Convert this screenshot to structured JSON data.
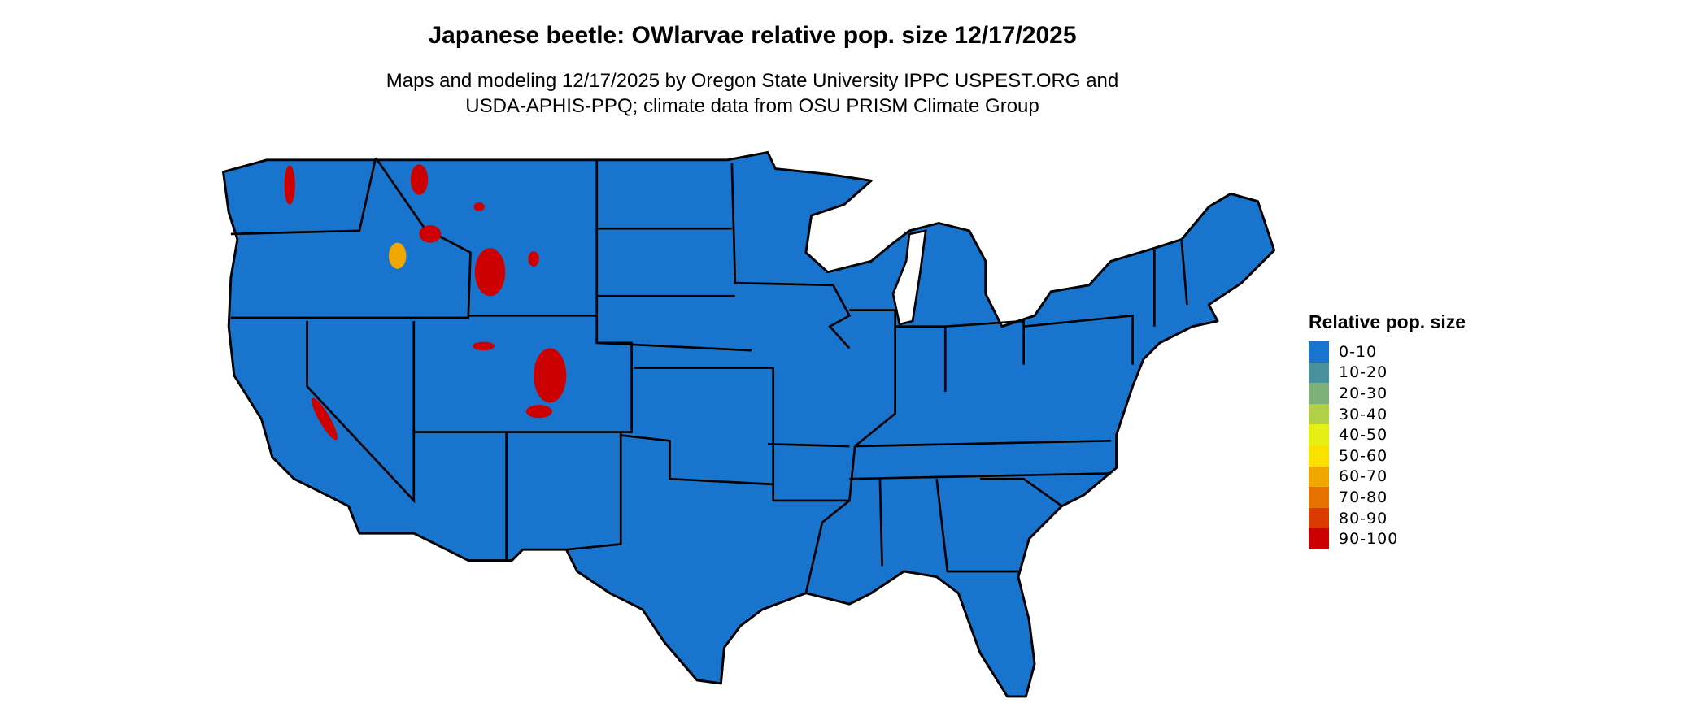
{
  "chart_data": {
    "type": "choropleth-map",
    "title": "Japanese beetle: OWlarvae relative pop. size 12/17/2025",
    "subtitle_lines": [
      "Maps and modeling 12/17/2025 by Oregon State University IPPC USPEST.ORG and",
      "USDA-APHIS-PPQ; climate data from OSU PRISM Climate Group"
    ],
    "region": "Contiguous United States",
    "dominant_class": "0-10",
    "high_value_areas": [
      "Idaho/Montana/Wyoming mountains",
      "Colorado Rockies",
      "Utah mountains",
      "Sierra Nevada (California)",
      "Washington Cascades"
    ],
    "legend": {
      "title": "Relative pop. size",
      "placement": "right",
      "items": [
        {
          "label": "0-10",
          "color": "#1874CD"
        },
        {
          "label": "10-20",
          "color": "#4A919E"
        },
        {
          "label": "20-30",
          "color": "#7EB07A"
        },
        {
          "label": "30-40",
          "color": "#B2D045"
        },
        {
          "label": "40-50",
          "color": "#E5EF14"
        },
        {
          "label": "50-60",
          "color": "#FAE100"
        },
        {
          "label": "60-70",
          "color": "#F0A800"
        },
        {
          "label": "70-80",
          "color": "#E57200"
        },
        {
          "label": "80-90",
          "color": "#DB3A00"
        },
        {
          "label": "90-100",
          "color": "#CD0000"
        }
      ]
    }
  }
}
